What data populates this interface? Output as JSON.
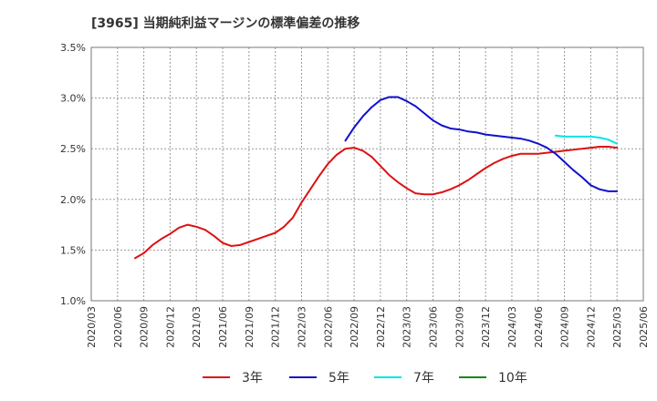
{
  "chart_data": {
    "type": "line",
    "title": "[3965]  当期純利益マージンの標準偏差の推移",
    "xlabel": "",
    "ylabel": "",
    "y_ticks": [
      "1.0%",
      "1.5%",
      "2.0%",
      "2.5%",
      "3.0%",
      "3.5%"
    ],
    "y_tick_values": [
      1.0,
      1.5,
      2.0,
      2.5,
      3.0,
      3.5
    ],
    "ylim": [
      1.0,
      3.5
    ],
    "x_ticks": [
      "2020/03",
      "2020/06",
      "2020/09",
      "2020/12",
      "2021/03",
      "2021/06",
      "2021/09",
      "2021/12",
      "2022/03",
      "2022/06",
      "2022/09",
      "2022/12",
      "2023/03",
      "2023/06",
      "2023/09",
      "2023/12",
      "2024/03",
      "2024/06",
      "2024/09",
      "2024/12",
      "2025/03",
      "2025/06"
    ],
    "grid": true,
    "legend_position": "bottom",
    "series": [
      {
        "name": "3年",
        "color": "#dd1111",
        "points": [
          [
            "2020/08",
            1.42
          ],
          [
            "2020/09",
            1.47
          ],
          [
            "2020/10",
            1.55
          ],
          [
            "2020/11",
            1.61
          ],
          [
            "2020/12",
            1.66
          ],
          [
            "2021/01",
            1.72
          ],
          [
            "2021/02",
            1.75
          ],
          [
            "2021/03",
            1.73
          ],
          [
            "2021/04",
            1.7
          ],
          [
            "2021/05",
            1.64
          ],
          [
            "2021/06",
            1.57
          ],
          [
            "2021/07",
            1.54
          ],
          [
            "2021/08",
            1.55
          ],
          [
            "2021/09",
            1.58
          ],
          [
            "2021/10",
            1.61
          ],
          [
            "2021/11",
            1.64
          ],
          [
            "2021/12",
            1.67
          ],
          [
            "2022/01",
            1.73
          ],
          [
            "2022/02",
            1.82
          ],
          [
            "2022/03",
            1.97
          ],
          [
            "2022/04",
            2.1
          ],
          [
            "2022/05",
            2.23
          ],
          [
            "2022/06",
            2.35
          ],
          [
            "2022/07",
            2.44
          ],
          [
            "2022/08",
            2.5
          ],
          [
            "2022/09",
            2.51
          ],
          [
            "2022/10",
            2.48
          ],
          [
            "2022/11",
            2.42
          ],
          [
            "2022/12",
            2.33
          ],
          [
            "2023/01",
            2.24
          ],
          [
            "2023/02",
            2.17
          ],
          [
            "2023/03",
            2.11
          ],
          [
            "2023/04",
            2.06
          ],
          [
            "2023/05",
            2.05
          ],
          [
            "2023/06",
            2.05
          ],
          [
            "2023/07",
            2.07
          ],
          [
            "2023/08",
            2.1
          ],
          [
            "2023/09",
            2.14
          ],
          [
            "2023/10",
            2.19
          ],
          [
            "2023/11",
            2.25
          ],
          [
            "2023/12",
            2.31
          ],
          [
            "2024/01",
            2.36
          ],
          [
            "2024/02",
            2.4
          ],
          [
            "2024/03",
            2.43
          ],
          [
            "2024/04",
            2.45
          ],
          [
            "2024/05",
            2.45
          ],
          [
            "2024/06",
            2.45
          ],
          [
            "2024/07",
            2.46
          ],
          [
            "2024/08",
            2.47
          ],
          [
            "2024/09",
            2.48
          ],
          [
            "2024/10",
            2.49
          ],
          [
            "2024/11",
            2.5
          ],
          [
            "2024/12",
            2.51
          ],
          [
            "2025/01",
            2.52
          ],
          [
            "2025/02",
            2.52
          ],
          [
            "2025/03",
            2.51
          ]
        ]
      },
      {
        "name": "5年",
        "color": "#1111cc",
        "points": [
          [
            "2022/08",
            2.58
          ],
          [
            "2022/09",
            2.71
          ],
          [
            "2022/10",
            2.82
          ],
          [
            "2022/11",
            2.91
          ],
          [
            "2022/12",
            2.98
          ],
          [
            "2023/01",
            3.01
          ],
          [
            "2023/02",
            3.01
          ],
          [
            "2023/03",
            2.97
          ],
          [
            "2023/04",
            2.92
          ],
          [
            "2023/05",
            2.85
          ],
          [
            "2023/06",
            2.78
          ],
          [
            "2023/07",
            2.73
          ],
          [
            "2023/08",
            2.7
          ],
          [
            "2023/09",
            2.69
          ],
          [
            "2023/10",
            2.67
          ],
          [
            "2023/11",
            2.66
          ],
          [
            "2023/12",
            2.64
          ],
          [
            "2024/01",
            2.63
          ],
          [
            "2024/02",
            2.62
          ],
          [
            "2024/03",
            2.61
          ],
          [
            "2024/04",
            2.6
          ],
          [
            "2024/05",
            2.58
          ],
          [
            "2024/06",
            2.55
          ],
          [
            "2024/07",
            2.51
          ],
          [
            "2024/08",
            2.45
          ],
          [
            "2024/09",
            2.37
          ],
          [
            "2024/10",
            2.29
          ],
          [
            "2024/11",
            2.22
          ],
          [
            "2024/12",
            2.14
          ],
          [
            "2025/01",
            2.1
          ],
          [
            "2025/02",
            2.08
          ],
          [
            "2025/03",
            2.08
          ]
        ]
      },
      {
        "name": "7年",
        "color": "#00e5e5",
        "points": [
          [
            "2024/08",
            2.63
          ],
          [
            "2024/09",
            2.62
          ],
          [
            "2024/10",
            2.62
          ],
          [
            "2024/11",
            2.62
          ],
          [
            "2024/12",
            2.62
          ],
          [
            "2025/01",
            2.61
          ],
          [
            "2025/02",
            2.59
          ],
          [
            "2025/03",
            2.55
          ]
        ]
      },
      {
        "name": "10年",
        "color": "#118811",
        "points": []
      }
    ]
  }
}
